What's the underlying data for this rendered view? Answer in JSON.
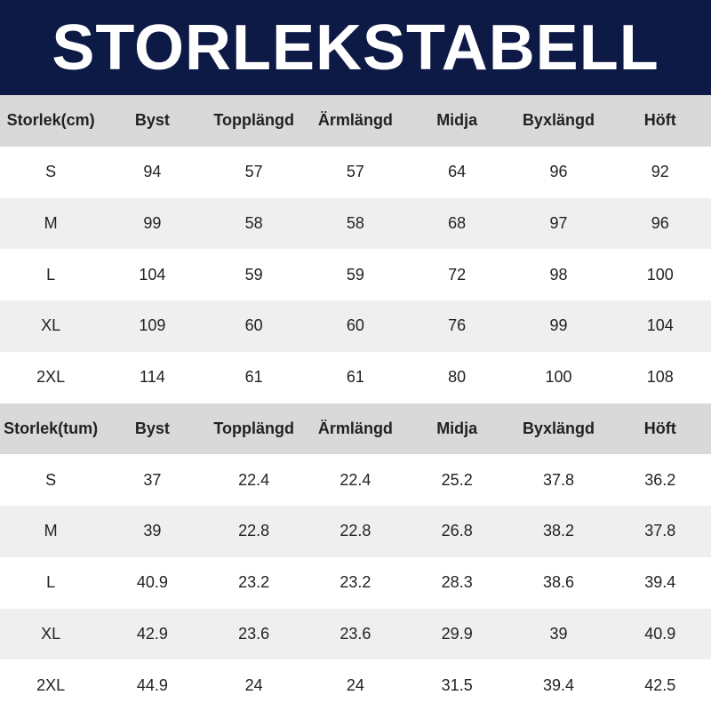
{
  "header": {
    "title": "STORLEKSTABELL"
  },
  "tables": [
    {
      "columns": [
        "Storlek(cm)",
        "Byst",
        "Topplängd",
        "Ärmlängd",
        "Midja",
        "Byxlängd",
        "Höft"
      ],
      "rows": [
        [
          "S",
          "94",
          "57",
          "57",
          "64",
          "96",
          "92"
        ],
        [
          "M",
          "99",
          "58",
          "58",
          "68",
          "97",
          "96"
        ],
        [
          "L",
          "104",
          "59",
          "59",
          "72",
          "98",
          "100"
        ],
        [
          "XL",
          "109",
          "60",
          "60",
          "76",
          "99",
          "104"
        ],
        [
          "2XL",
          "114",
          "61",
          "61",
          "80",
          "100",
          "108"
        ]
      ]
    },
    {
      "columns": [
        "Storlek(tum)",
        "Byst",
        "Topplängd",
        "Ärmlängd",
        "Midja",
        "Byxlängd",
        "Höft"
      ],
      "rows": [
        [
          "S",
          "37",
          "22.4",
          "22.4",
          "25.2",
          "37.8",
          "36.2"
        ],
        [
          "M",
          "39",
          "22.8",
          "22.8",
          "26.8",
          "38.2",
          "37.8"
        ],
        [
          "L",
          "40.9",
          "23.2",
          "23.2",
          "28.3",
          "38.6",
          "39.4"
        ],
        [
          "XL",
          "42.9",
          "23.6",
          "23.6",
          "29.9",
          "39",
          "40.9"
        ],
        [
          "2XL",
          "44.9",
          "24",
          "24",
          "31.5",
          "39.4",
          "42.5"
        ]
      ]
    }
  ]
}
